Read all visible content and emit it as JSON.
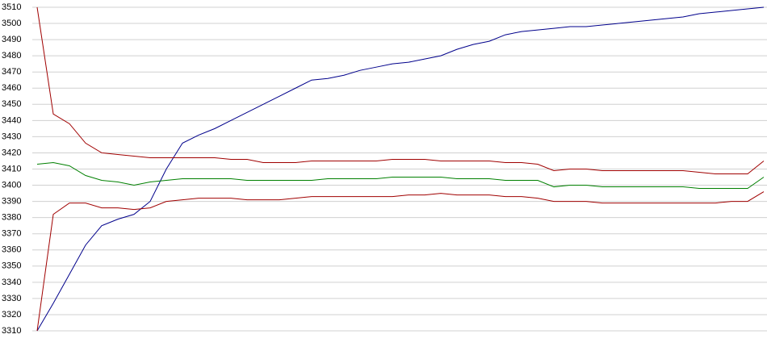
{
  "chart_data": {
    "type": "line",
    "ylim": [
      3310,
      3510
    ],
    "yticks": [
      3310,
      3320,
      3330,
      3340,
      3350,
      3360,
      3370,
      3380,
      3390,
      3400,
      3410,
      3420,
      3430,
      3440,
      3450,
      3460,
      3470,
      3480,
      3490,
      3500,
      3510
    ],
    "grid": true,
    "series": [
      {
        "color": "#00008b",
        "values": [
          3310,
          3327,
          3345,
          3363,
          3375,
          3379,
          3382,
          3390,
          3410,
          3426,
          3431,
          3435,
          3440,
          3445,
          3450,
          3455,
          3460,
          3465,
          3466,
          3468,
          3471,
          3473,
          3475,
          3476,
          3478,
          3480,
          3484,
          3487,
          3489,
          3493,
          3495,
          3496,
          3497,
          3498,
          3498,
          3499,
          3500,
          3501,
          3502,
          3503,
          3504,
          3506,
          3507,
          3508,
          3509,
          3510
        ]
      },
      {
        "color": "#a00000",
        "values": [
          3510,
          3444,
          3438,
          3426,
          3420,
          3419,
          3418,
          3417,
          3417,
          3417,
          3417,
          3417,
          3416,
          3416,
          3414,
          3414,
          3414,
          3415,
          3415,
          3415,
          3415,
          3415,
          3416,
          3416,
          3416,
          3415,
          3415,
          3415,
          3415,
          3414,
          3414,
          3413,
          3409,
          3410,
          3410,
          3409,
          3409,
          3409,
          3409,
          3409,
          3409,
          3408,
          3407,
          3407,
          3407,
          3415
        ]
      },
      {
        "color": "#008000",
        "values": [
          3413,
          3414,
          3412,
          3406,
          3403,
          3402,
          3400,
          3402,
          3403,
          3404,
          3404,
          3404,
          3404,
          3403,
          3403,
          3403,
          3403,
          3403,
          3404,
          3404,
          3404,
          3404,
          3405,
          3405,
          3405,
          3405,
          3404,
          3404,
          3404,
          3403,
          3403,
          3403,
          3399,
          3400,
          3400,
          3399,
          3399,
          3399,
          3399,
          3399,
          3399,
          3398,
          3398,
          3398,
          3398,
          3405
        ]
      },
      {
        "color": "#a00000",
        "values": [
          3310,
          3382,
          3389,
          3389,
          3386,
          3386,
          3385,
          3386,
          3390,
          3391,
          3392,
          3392,
          3392,
          3391,
          3391,
          3391,
          3392,
          3393,
          3393,
          3393,
          3393,
          3393,
          3393,
          3394,
          3394,
          3395,
          3394,
          3394,
          3394,
          3393,
          3393,
          3392,
          3390,
          3390,
          3390,
          3389,
          3389,
          3389,
          3389,
          3389,
          3389,
          3389,
          3389,
          3390,
          3390,
          3396
        ]
      }
    ]
  }
}
